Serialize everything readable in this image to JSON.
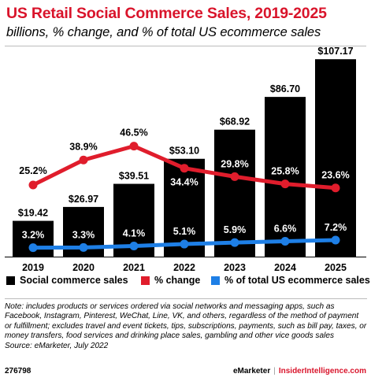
{
  "header": {
    "title": "US Retail Social Commerce Sales, 2019-2025",
    "subtitle": "billions, % change, and % of total US ecommerce sales"
  },
  "colors": {
    "bar": "#000000",
    "change_line": "#e01d2c",
    "share_line": "#1e7fe6",
    "title": "#d9142b"
  },
  "chart_data": {
    "type": "bar",
    "categories": [
      "2019",
      "2020",
      "2021",
      "2022",
      "2023",
      "2024",
      "2025"
    ],
    "series": [
      {
        "name": "Social commerce sales",
        "type": "bar",
        "values": [
          19.42,
          26.97,
          39.51,
          53.1,
          68.92,
          86.7,
          107.17
        ],
        "labels": [
          "$19.42",
          "$26.97",
          "$39.51",
          "$53.10",
          "$68.92",
          "$86.70",
          "$107.17"
        ]
      },
      {
        "name": "% change",
        "type": "line",
        "values": [
          25.2,
          38.9,
          46.5,
          34.4,
          29.8,
          25.8,
          23.6
        ],
        "labels": [
          "25.2%",
          "38.9%",
          "46.5%",
          "34.4%",
          "29.8%",
          "25.8%",
          "23.6%"
        ]
      },
      {
        "name": "% of total US ecommerce sales",
        "type": "line",
        "values": [
          3.2,
          3.3,
          4.1,
          5.1,
          5.9,
          6.6,
          7.2
        ],
        "labels": [
          "3.2%",
          "3.3%",
          "4.1%",
          "5.1%",
          "5.9%",
          "6.6%",
          "7.2%"
        ]
      }
    ],
    "legend_position": "bottom"
  },
  "legend": {
    "items": [
      {
        "label": "Social commerce sales",
        "color": "#000000"
      },
      {
        "label": "% change",
        "color": "#e01d2c"
      },
      {
        "label": "% of total US ecommerce sales",
        "color": "#1e7fe6"
      }
    ]
  },
  "note": "Note: includes products or services ordered via social networks and messaging apps, such as Facebook, Instagram, Pinterest, WeChat, Line, VK, and others, regardless of the method of payment or fulfillment; excludes travel and event tickets, tips, subscriptions, payments, such as bill pay, taxes, or money transfers, food services and drinking place sales, gambling and other vice goods sales",
  "source": "Source: eMarketer, July 2022",
  "footer": {
    "id": "276798",
    "brand_a": "eMarketer",
    "separator": "|",
    "brand_b": "InsiderIntelligence.com"
  }
}
